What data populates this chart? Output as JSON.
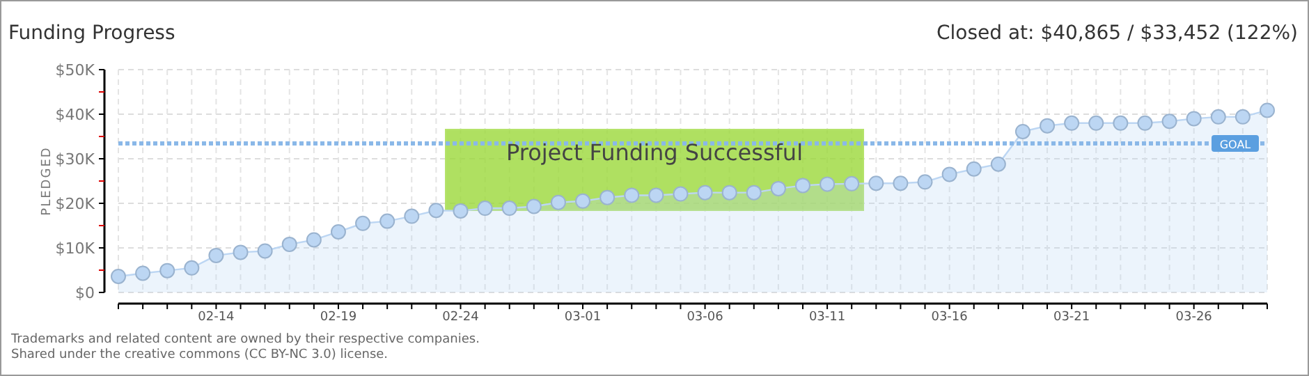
{
  "chart_data": {
    "type": "area",
    "title": "Funding Progress",
    "subtitle": "Closed at: $40,865 / $33,452 (122%)",
    "ylabel": "PLEDGED",
    "x": [
      "--02-10",
      "--02-11",
      "--02-12",
      "--02-13",
      "--02-14",
      "--02-15",
      "--02-16",
      "--02-17",
      "--02-18",
      "--02-19",
      "--02-20",
      "--02-21",
      "--02-22",
      "--02-23",
      "--02-24",
      "--02-25",
      "--02-26",
      "--02-27",
      "--02-28",
      "--03-01",
      "--03-02",
      "--03-03",
      "--03-04",
      "--03-05",
      "--03-06",
      "--03-07",
      "--03-08",
      "--03-09",
      "--03-10",
      "--03-11",
      "--03-12",
      "--03-13",
      "--03-14",
      "--03-15",
      "--03-16",
      "--03-17",
      "--03-18",
      "--03-19",
      "--03-20",
      "--03-21",
      "--03-22",
      "--03-23",
      "--03-24",
      "--03-25",
      "--03-26",
      "--03-27",
      "--03-28",
      "--03-29"
    ],
    "series": [
      {
        "color": "#bcd6f3",
        "values": [
          3600,
          4300,
          4900,
          5500,
          8300,
          9000,
          9300,
          10800,
          11800,
          13600,
          15500,
          16000,
          17100,
          18400,
          18300,
          18900,
          18900,
          19300,
          20200,
          20500,
          21300,
          21800,
          21800,
          22100,
          22400,
          22400,
          22400,
          23300,
          24000,
          24300,
          24400,
          24500,
          24500,
          24800,
          26500,
          27700,
          28800,
          36100,
          37400,
          38000,
          38000,
          38000,
          38000,
          38400,
          39000,
          39400,
          39400,
          40865
        ]
      }
    ],
    "xlim": [
      "--02-10",
      "--03-29"
    ],
    "xticks": [
      {
        "value": "--02-10",
        "label": null
      },
      {
        "value": "--02-11",
        "label": null
      },
      {
        "value": "--02-12",
        "label": null
      },
      {
        "value": "--02-13",
        "label": null
      },
      {
        "value": "--02-14",
        "label": "02-14"
      },
      {
        "value": "--02-15",
        "label": null
      },
      {
        "value": "--02-16",
        "label": null
      },
      {
        "value": "--02-17",
        "label": null
      },
      {
        "value": "--02-18",
        "label": null
      },
      {
        "value": "--02-19",
        "label": "02-19"
      },
      {
        "value": "--02-20",
        "label": null
      },
      {
        "value": "--02-21",
        "label": null
      },
      {
        "value": "--02-22",
        "label": null
      },
      {
        "value": "--02-23",
        "label": null
      },
      {
        "value": "--02-24",
        "label": "02-24"
      },
      {
        "value": "--02-25",
        "label": null
      },
      {
        "value": "--02-26",
        "label": null
      },
      {
        "value": "--02-27",
        "label": null
      },
      {
        "value": "--02-28",
        "label": null
      },
      {
        "value": "--03-01",
        "label": "03-01"
      },
      {
        "value": "--03-02",
        "label": null
      },
      {
        "value": "--03-03",
        "label": null
      },
      {
        "value": "--03-04",
        "label": null
      },
      {
        "value": "--03-05",
        "label": null
      },
      {
        "value": "--03-06",
        "label": "03-06"
      },
      {
        "value": "--03-07",
        "label": null
      },
      {
        "value": "--03-08",
        "label": null
      },
      {
        "value": "--03-09",
        "label": null
      },
      {
        "value": "--03-10",
        "label": null
      },
      {
        "value": "--03-11",
        "label": "03-11"
      },
      {
        "value": "--03-12",
        "label": null
      },
      {
        "value": "--03-13",
        "label": null
      },
      {
        "value": "--03-14",
        "label": null
      },
      {
        "value": "--03-15",
        "label": null
      },
      {
        "value": "--03-16",
        "label": "03-16"
      },
      {
        "value": "--03-17",
        "label": null
      },
      {
        "value": "--03-18",
        "label": null
      },
      {
        "value": "--03-19",
        "label": null
      },
      {
        "value": "--03-20",
        "label": null
      },
      {
        "value": "--03-21",
        "label": "03-21"
      },
      {
        "value": "--03-22",
        "label": null
      },
      {
        "value": "--03-23",
        "label": null
      },
      {
        "value": "--03-24",
        "label": null
      },
      {
        "value": "--03-25",
        "label": null
      },
      {
        "value": "--03-26",
        "label": "03-26"
      },
      {
        "value": "--03-27",
        "label": null
      },
      {
        "value": "--03-28",
        "label": null
      },
      {
        "value": "--03-29",
        "label": null
      }
    ],
    "ylim": [
      0,
      50000
    ],
    "yticks": [
      {
        "value": 0,
        "label": "$0"
      },
      {
        "value": 5000,
        "label": null
      },
      {
        "value": 10000,
        "label": "$10K"
      },
      {
        "value": 15000,
        "label": null
      },
      {
        "value": 20000,
        "label": "$20K"
      },
      {
        "value": 25000,
        "label": null
      },
      {
        "value": 30000,
        "label": "$30K"
      },
      {
        "value": 35000,
        "label": null
      },
      {
        "value": 40000,
        "label": "$40K"
      },
      {
        "value": 45000,
        "label": null
      },
      {
        "value": 50000,
        "label": "$50K"
      }
    ],
    "grid": true,
    "marker": "circle",
    "ref_lines": [
      {
        "axis": "y",
        "value": 33452,
        "label": "GOAL",
        "color": "#8ab8e8",
        "line_style": "dotted"
      }
    ],
    "annotations": [
      "Project Funding Successful",
      "Trademarks and related content are owned by their respective companies.",
      "Shared under the creative commons (CC BY-NC 3.0) license."
    ]
  }
}
